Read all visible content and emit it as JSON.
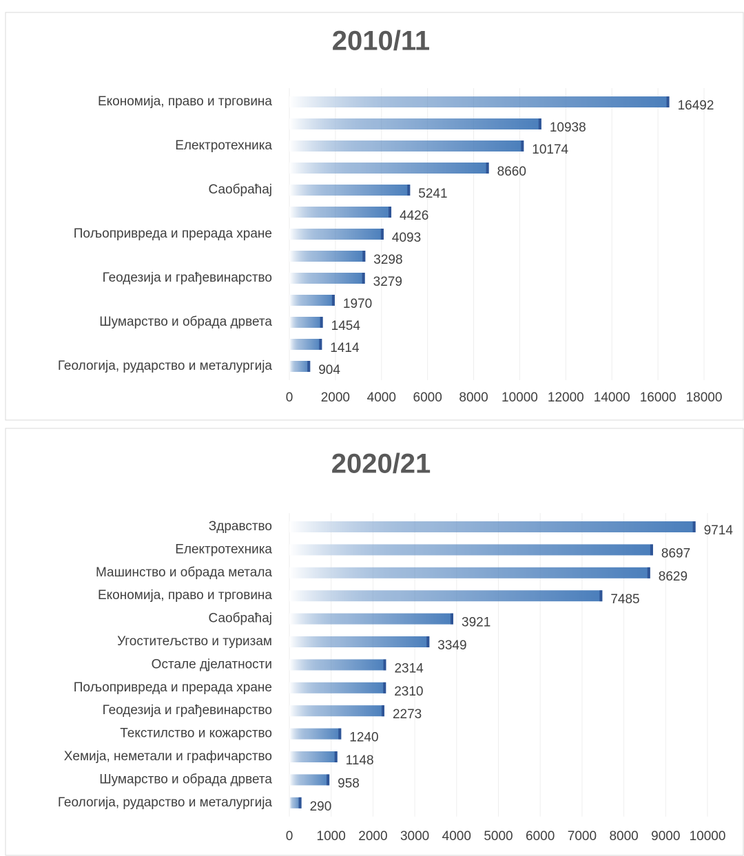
{
  "chart_data": [
    {
      "type": "bar",
      "title": "2010/11",
      "categories": [
        "Економија, право и трговина",
        null,
        "Електротехника",
        null,
        "Саобраћај",
        null,
        "Пољопривреда и прерада хране",
        null,
        "Геодезија и грађевинарство",
        null,
        "Шумарство и обрада дрвета",
        null,
        "Геологија, рударство и металургија"
      ],
      "values": [
        16492,
        10938,
        10174,
        8660,
        5241,
        4426,
        4093,
        3298,
        3279,
        1970,
        1454,
        1414,
        904
      ],
      "color": "#4a7ebb",
      "xlim": [
        0,
        18000
      ],
      "xticks": [
        0,
        2000,
        4000,
        6000,
        8000,
        10000,
        12000,
        14000,
        16000,
        18000
      ],
      "grid": true
    },
    {
      "type": "bar",
      "title": "2020/21",
      "categories": [
        "Здравство",
        "Електротехника",
        "Машинство и обрада метала",
        "Економија, право и трговина",
        "Саобраћај",
        "Угоститељство и туризам",
        "Остале дјелатности",
        "Пољопривреда и прерада хране",
        "Геодезија и грађевинарство",
        "Текстилство и кожарство",
        "Хемија, неметали и графичарство",
        "Шумарство и обрада дрвета",
        "Геологија, рударство и металургија"
      ],
      "values": [
        9714,
        8697,
        8629,
        7485,
        3921,
        3349,
        2314,
        2310,
        2273,
        1240,
        1148,
        958,
        290
      ],
      "color": "#4a7ebb",
      "xlim": [
        0,
        10000
      ],
      "xticks": [
        0,
        1000,
        2000,
        3000,
        4000,
        5000,
        6000,
        7000,
        8000,
        9000,
        10000
      ],
      "grid": true
    }
  ]
}
